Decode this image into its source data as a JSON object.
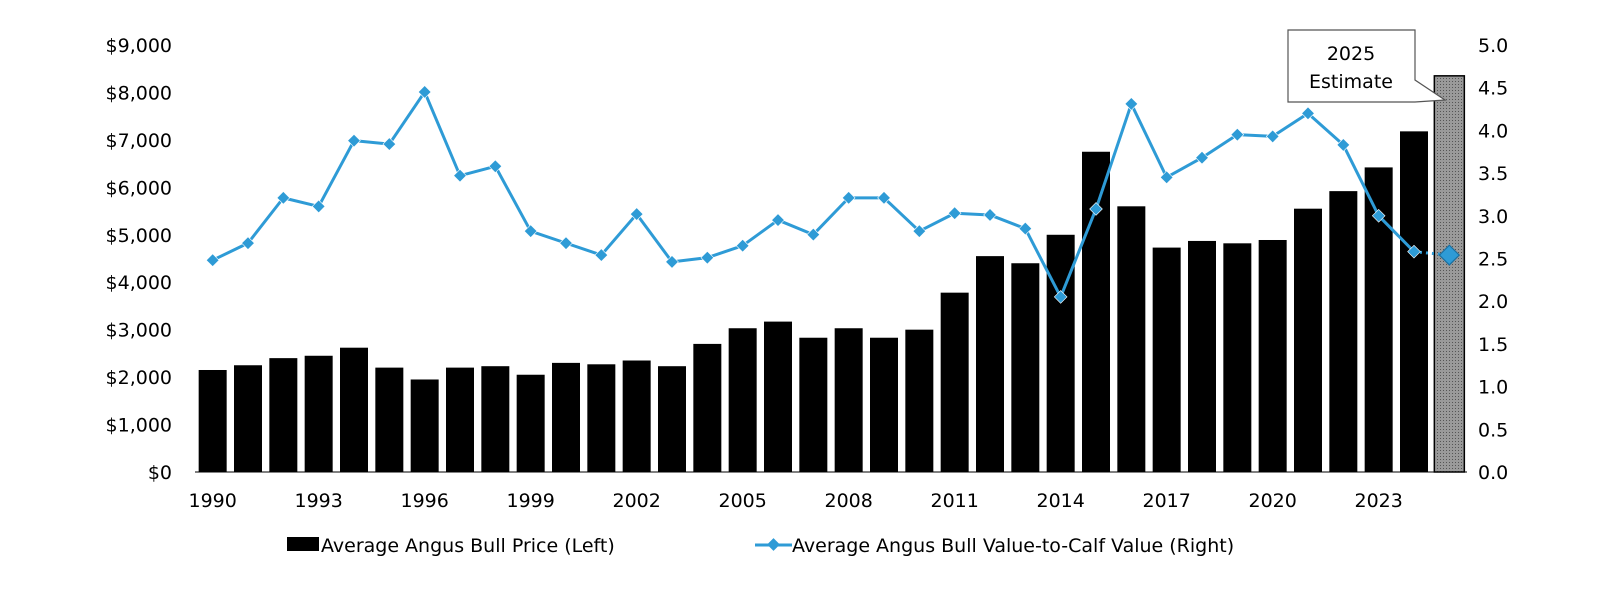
{
  "chart_data": {
    "type": "bar+line",
    "title": "",
    "categories": [
      1990,
      1991,
      1992,
      1993,
      1994,
      1995,
      1996,
      1997,
      1998,
      1999,
      2000,
      2001,
      2002,
      2003,
      2004,
      2005,
      2006,
      2007,
      2008,
      2009,
      2010,
      2011,
      2012,
      2013,
      2014,
      2015,
      2016,
      2017,
      2018,
      2019,
      2020,
      2021,
      2022,
      2023,
      2024,
      2025
    ],
    "x_tick_labels": [
      "1990",
      "1993",
      "1996",
      "1999",
      "2002",
      "2005",
      "2008",
      "2011",
      "2014",
      "2017",
      "2020",
      "2023"
    ],
    "series": [
      {
        "name": "Average Angus Bull Price (Left)",
        "type": "bar",
        "axis": "left",
        "color": "#000000",
        "values": [
          2150,
          2250,
          2400,
          2450,
          2620,
          2200,
          1950,
          2200,
          2230,
          2050,
          2300,
          2270,
          2350,
          2230,
          2700,
          3030,
          3170,
          2830,
          3030,
          2830,
          3000,
          3780,
          4550,
          4400,
          5000,
          6750,
          5600,
          4730,
          4870,
          4820,
          4890,
          5550,
          5920,
          6420,
          7180,
          8350
        ]
      },
      {
        "name": "Average Angus Bull Value-to-Calf Value (Right)",
        "type": "line",
        "axis": "right",
        "color": "#2e9bd6",
        "values": [
          2.48,
          2.68,
          3.21,
          3.11,
          3.88,
          3.84,
          4.45,
          3.47,
          3.58,
          2.82,
          2.68,
          2.54,
          3.02,
          2.46,
          2.51,
          2.65,
          2.95,
          2.78,
          3.21,
          3.21,
          2.82,
          3.03,
          3.01,
          2.85,
          2.05,
          3.08,
          4.31,
          3.45,
          3.68,
          3.95,
          3.93,
          4.2,
          3.83,
          3.0,
          2.58,
          2.54
        ]
      }
    ],
    "estimate_category": 2025,
    "y_left": {
      "range": [
        0,
        9000
      ],
      "ticks": [
        "$0",
        "$1,000",
        "$2,000",
        "$3,000",
        "$4,000",
        "$5,000",
        "$6,000",
        "$7,000",
        "$8,000",
        "$9,000"
      ]
    },
    "y_right": {
      "range": [
        0,
        5
      ],
      "ticks": [
        "0.0",
        "0.5",
        "1.0",
        "1.5",
        "2.0",
        "2.5",
        "3.0",
        "3.5",
        "4.0",
        "4.5",
        "5.0"
      ]
    },
    "annotation": [
      "2025",
      "Estimate"
    ],
    "legend": {
      "placement": "bottom",
      "items": [
        "Average Angus Bull Price (Left)",
        "Average Angus Bull Value-to-Calf Value (Right)"
      ]
    },
    "grid": false
  }
}
